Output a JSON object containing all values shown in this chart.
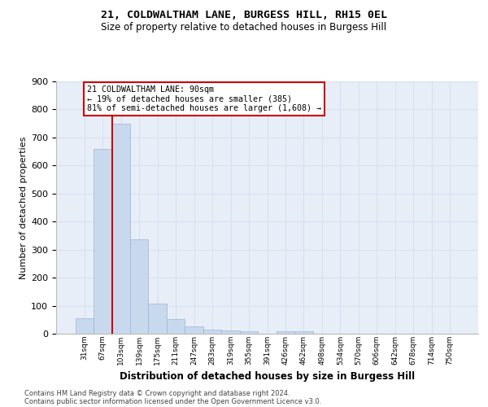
{
  "title1": "21, COLDWALTHAM LANE, BURGESS HILL, RH15 0EL",
  "title2": "Size of property relative to detached houses in Burgess Hill",
  "xlabel": "Distribution of detached houses by size in Burgess Hill",
  "ylabel": "Number of detached properties",
  "categories": [
    "31sqm",
    "67sqm",
    "103sqm",
    "139sqm",
    "175sqm",
    "211sqm",
    "247sqm",
    "283sqm",
    "319sqm",
    "355sqm",
    "391sqm",
    "426sqm",
    "462sqm",
    "498sqm",
    "534sqm",
    "570sqm",
    "606sqm",
    "642sqm",
    "678sqm",
    "714sqm",
    "750sqm"
  ],
  "values": [
    55,
    660,
    750,
    338,
    108,
    52,
    25,
    15,
    12,
    8,
    0,
    8,
    8,
    0,
    0,
    0,
    0,
    0,
    0,
    0,
    0
  ],
  "bar_color": "#c8d9ee",
  "bar_edge_color": "#9ab4d4",
  "grid_color": "#d5e2f2",
  "bg_color": "#e8eef8",
  "property_line_x": 1.5,
  "property_line_color": "#cc0000",
  "annotation_line1": "21 COLDWALTHAM LANE: 90sqm",
  "annotation_line2": "← 19% of detached houses are smaller (385)",
  "annotation_line3": "81% of semi-detached houses are larger (1,608) →",
  "annotation_box_color": "#cc0000",
  "footnote1": "Contains HM Land Registry data © Crown copyright and database right 2024.",
  "footnote2": "Contains public sector information licensed under the Open Government Licence v3.0.",
  "ylim": [
    0,
    900
  ],
  "yticks": [
    0,
    100,
    200,
    300,
    400,
    500,
    600,
    700,
    800,
    900
  ]
}
